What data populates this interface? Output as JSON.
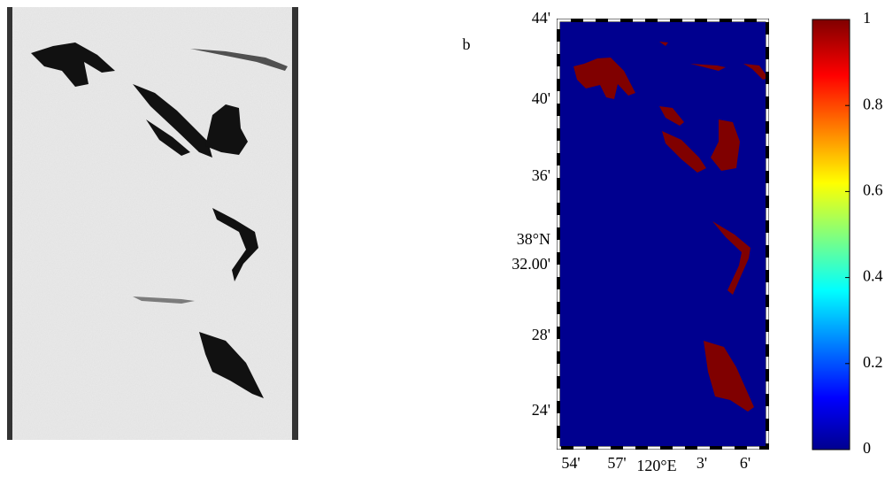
{
  "panel_label": "b",
  "map": {
    "y_labels": [
      "44'",
      "40'",
      "36'",
      "38°N",
      "32.00'",
      "28'",
      "24'"
    ],
    "x_labels": [
      "54'",
      "57'",
      "120°E",
      "3'",
      "6'"
    ]
  },
  "colorbar": {
    "range": [
      0,
      1
    ],
    "ticks": [
      0,
      0.2,
      0.4,
      0.6,
      0.8,
      1
    ]
  }
}
